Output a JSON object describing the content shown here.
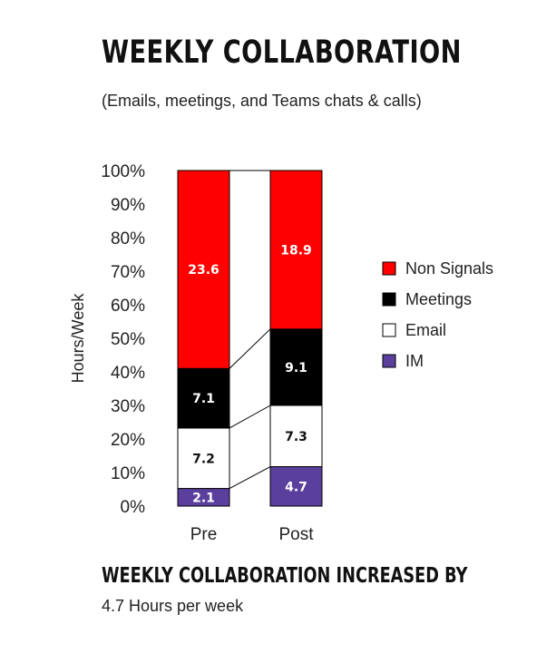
{
  "title": "WEEKLY COLLABORATION",
  "subtitle": "(Emails, meetings, and Teams chats & calls)",
  "footer": {
    "heading": "WEEKLY COLLABORATION INCREASED BY",
    "text": "4.7 Hours per week"
  },
  "chart_data": {
    "type": "bar",
    "stacked": true,
    "normalized": true,
    "ylabel": "Hours/Week",
    "ylim": [
      0,
      100
    ],
    "yticks": [
      "0%",
      "10%",
      "20%",
      "30%",
      "40%",
      "50%",
      "60%",
      "70%",
      "80%",
      "90%",
      "100%"
    ],
    "categories": [
      "Pre",
      "Post"
    ],
    "series": [
      {
        "name": "IM",
        "values": [
          2.1,
          4.7
        ],
        "labels": [
          "2.1",
          "4.7"
        ],
        "color": "#5b3f9c",
        "text_color": "#ffffff"
      },
      {
        "name": "Email",
        "values": [
          7.2,
          7.3
        ],
        "labels": [
          "7.2",
          "7.3"
        ],
        "color": "#ffffff",
        "text_color": "#111111"
      },
      {
        "name": "Meetings",
        "values": [
          7.1,
          9.1
        ],
        "labels": [
          "7.1",
          "9.1"
        ],
        "color": "#000000",
        "text_color": "#ffffff"
      },
      {
        "name": "Non Signals",
        "values": [
          23.6,
          18.9
        ],
        "labels": [
          "23.6",
          "18.9"
        ],
        "color": "#ff0000",
        "text_color": "#ffffff"
      }
    ],
    "legend": {
      "position": "right",
      "order": [
        "Non Signals",
        "Meetings",
        "Email",
        "IM"
      ]
    },
    "connector_lines": true,
    "grid": false
  }
}
